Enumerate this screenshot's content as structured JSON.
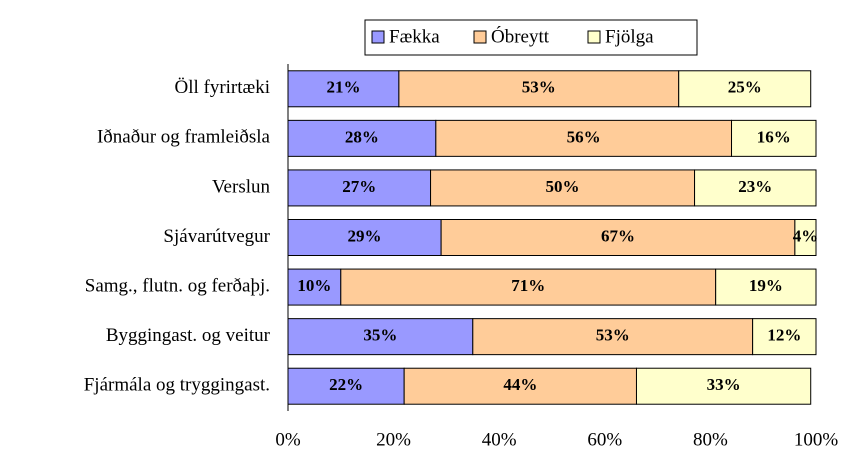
{
  "chart_data": {
    "type": "stacked-bar-horizontal",
    "categories": [
      "Öll fyrirtæki",
      "Iðnaður og framleiðsla",
      "Verslun",
      "Sjávarútvegur",
      "Samg., flutn. og ferðaþj.",
      "Byggingast. og veitur",
      "Fjármála og tryggingast."
    ],
    "series": [
      {
        "name": "Fækka",
        "color": "#9999ff",
        "values": [
          21,
          28,
          27,
          29,
          10,
          35,
          22
        ],
        "value_labels": [
          "21%",
          "28%",
          "27%",
          "29%",
          "10%",
          "35%",
          "22%"
        ]
      },
      {
        "name": "Óbreytt",
        "color": "#ffcc99",
        "values": [
          53,
          56,
          50,
          67,
          71,
          53,
          44
        ],
        "value_labels": [
          "53%",
          "56%",
          "50%",
          "67%",
          "71%",
          "53%",
          "44%"
        ]
      },
      {
        "name": "Fjölga",
        "color": "#ffffcc",
        "values": [
          25,
          16,
          23,
          4,
          19,
          12,
          33
        ],
        "value_labels": [
          "25%",
          "16%",
          "23%",
          "4%",
          "19%",
          "12%",
          "33%"
        ]
      }
    ],
    "xlim": [
      0,
      100
    ],
    "xticks": [
      {
        "value": 0,
        "label": "0%"
      },
      {
        "value": 20,
        "label": "20%"
      },
      {
        "value": 40,
        "label": "40%"
      },
      {
        "value": 60,
        "label": "60%"
      },
      {
        "value": 80,
        "label": "80%"
      },
      {
        "value": 100,
        "label": "100%"
      }
    ],
    "grid": false,
    "legend": "top"
  }
}
